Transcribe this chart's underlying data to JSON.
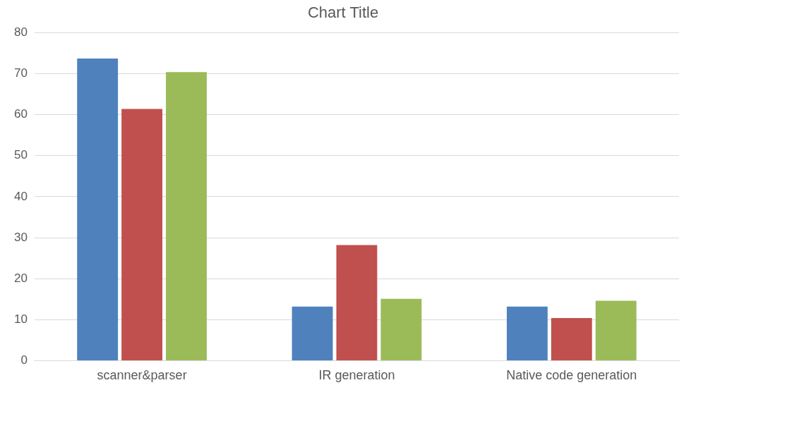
{
  "chart_data": {
    "type": "bar",
    "title": "Chart Title",
    "categories": [
      "scanner&parser",
      "IR generation",
      "Native code generation"
    ],
    "series": [
      {
        "color": "#4f81bd",
        "values": [
          73.7,
          13.2,
          13.2
        ]
      },
      {
        "color": "#c0504d",
        "values": [
          61.4,
          28.2,
          10.4
        ]
      },
      {
        "color": "#9bbb59",
        "values": [
          70.4,
          15.1,
          14.6
        ]
      }
    ],
    "ylim": [
      0,
      80
    ],
    "yticks": [
      0,
      10,
      20,
      30,
      40,
      50,
      60,
      70,
      80
    ],
    "grid": "y",
    "legend": false
  }
}
